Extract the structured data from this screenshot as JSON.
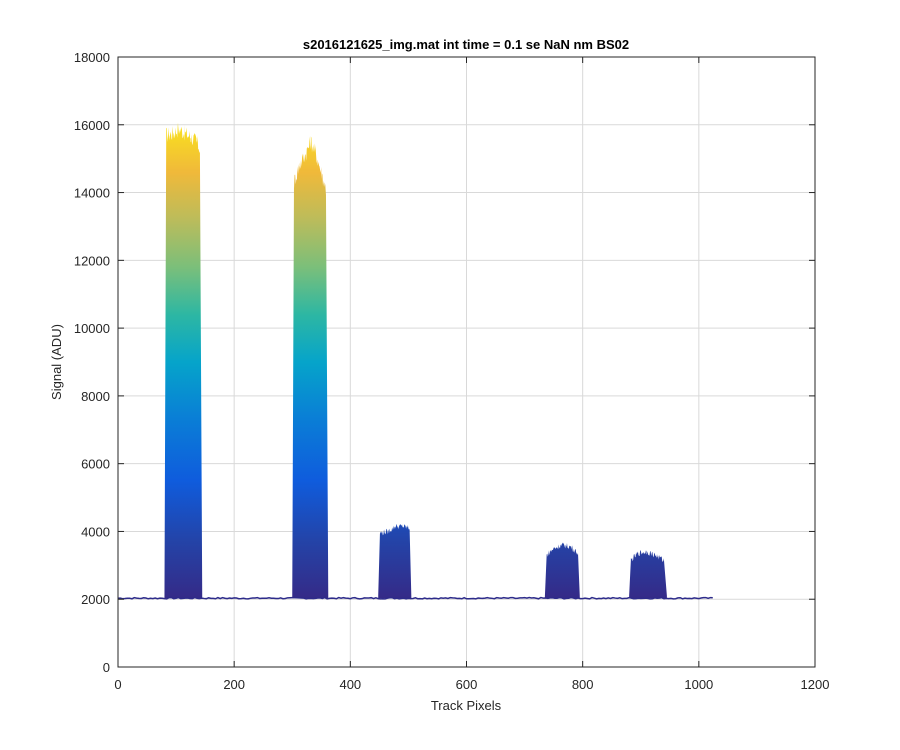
{
  "chart_data": {
    "type": "area",
    "title": "s2016121625_img.mat int time = 0.1 se  NaN nm BS02",
    "xlabel": "Track Pixels",
    "ylabel": "Signal (ADU)",
    "xlim": [
      0,
      1200
    ],
    "ylim": [
      0,
      18000
    ],
    "xticks": [
      0,
      200,
      400,
      600,
      800,
      1000,
      1200
    ],
    "yticks": [
      0,
      2000,
      4000,
      6000,
      8000,
      10000,
      12000,
      14000,
      16000,
      18000
    ],
    "grid": true,
    "colormap": "parula",
    "baseline": 2030,
    "x_range": [
      0,
      1024
    ],
    "series": [
      {
        "peak_x": [
          80,
          145
        ],
        "values": [
          [
            80,
            2100
          ],
          [
            83,
            15700
          ],
          [
            95,
            15750
          ],
          [
            105,
            15900
          ],
          [
            115,
            15750
          ],
          [
            125,
            15650
          ],
          [
            135,
            15500
          ],
          [
            141,
            15300
          ],
          [
            145,
            2100
          ]
        ]
      },
      {
        "peak_x": [
          300,
          362
        ],
        "values": [
          [
            300,
            2100
          ],
          [
            303,
            14300
          ],
          [
            312,
            14800
          ],
          [
            322,
            15100
          ],
          [
            332,
            15500
          ],
          [
            340,
            15200
          ],
          [
            350,
            14600
          ],
          [
            358,
            14100
          ],
          [
            362,
            2100
          ]
        ]
      },
      {
        "peak_x": [
          448,
          505
        ],
        "values": [
          [
            448,
            2100
          ],
          [
            451,
            3950
          ],
          [
            465,
            4000
          ],
          [
            478,
            4150
          ],
          [
            490,
            4150
          ],
          [
            502,
            4100
          ],
          [
            505,
            2100
          ]
        ]
      },
      {
        "peak_x": [
          735,
          795
        ],
        "values": [
          [
            735,
            2100
          ],
          [
            738,
            3300
          ],
          [
            750,
            3500
          ],
          [
            765,
            3600
          ],
          [
            780,
            3550
          ],
          [
            792,
            3350
          ],
          [
            795,
            2100
          ]
        ]
      },
      {
        "peak_x": [
          880,
          945
        ],
        "values": [
          [
            880,
            2100
          ],
          [
            883,
            3150
          ],
          [
            895,
            3350
          ],
          [
            910,
            3400
          ],
          [
            925,
            3300
          ],
          [
            940,
            3150
          ],
          [
            945,
            2100
          ]
        ]
      }
    ]
  }
}
